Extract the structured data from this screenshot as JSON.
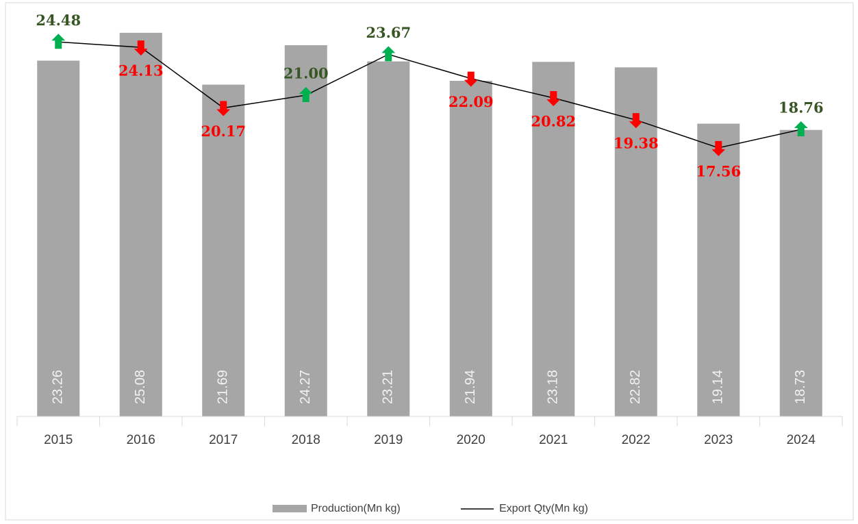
{
  "chart_data": {
    "type": "bar_line",
    "categories": [
      "2015",
      "2016",
      "2017",
      "2018",
      "2019",
      "2020",
      "2021",
      "2022",
      "2023",
      "2024"
    ],
    "series": [
      {
        "name": "Production(Mn kg)",
        "type": "bar",
        "color": "#a6a6a6",
        "values": [
          23.26,
          25.08,
          21.69,
          24.27,
          23.21,
          21.94,
          23.18,
          22.82,
          19.14,
          18.73
        ]
      },
      {
        "name": "Export Qty(Mn kg)",
        "type": "line",
        "color": "#000000",
        "values": [
          24.48,
          24.13,
          20.17,
          21.0,
          23.67,
          22.09,
          20.82,
          19.38,
          17.56,
          18.76
        ],
        "value_labels": [
          "24.48",
          "24.13",
          "20.17",
          "21.00",
          "23.67",
          "22.09",
          "20.82",
          "19.38",
          "17.56",
          "18.76"
        ],
        "up_color": "#00b050",
        "down_color": "#ff0000",
        "up_label_color": "#375623",
        "down_label_color": "#ff0000"
      }
    ],
    "ylim": [
      0,
      27
    ],
    "legend": "bottom"
  }
}
